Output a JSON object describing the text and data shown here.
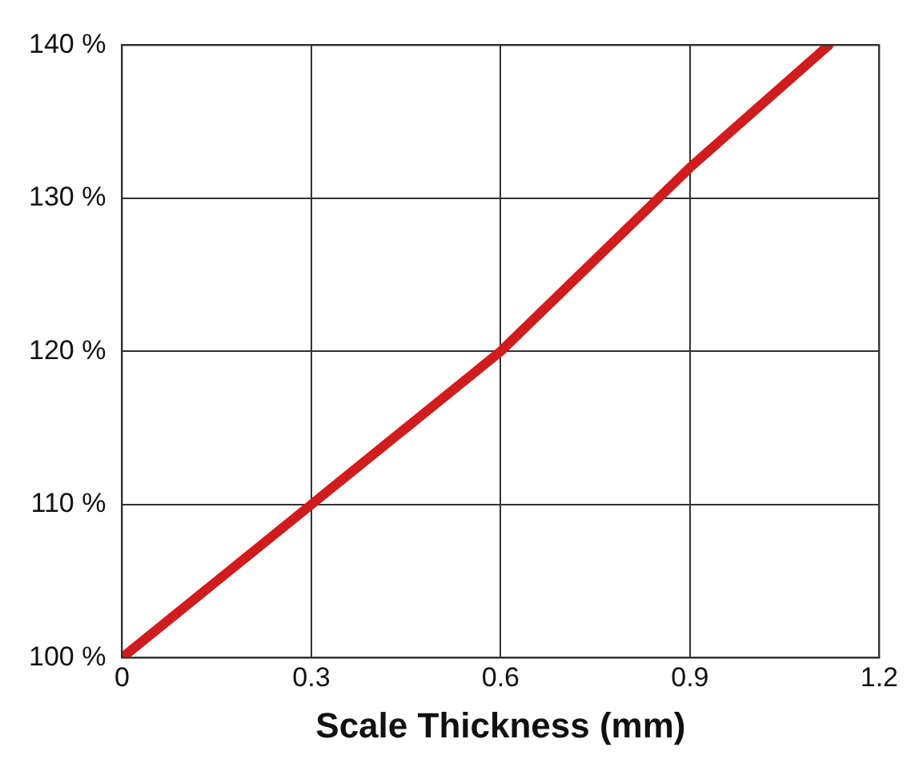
{
  "chart_data": {
    "type": "line",
    "xlabel": "Scale Thickness (mm)",
    "x": [
      0,
      0.3,
      0.6,
      0.9,
      1.12
    ],
    "series": [
      {
        "color": "#d01c1c",
        "values": [
          100,
          110,
          120,
          132,
          140
        ]
      }
    ],
    "xlim": [
      0,
      1.2
    ],
    "xticks": [
      0,
      0.3,
      0.6,
      0.9,
      1.2
    ],
    "ylim": [
      100,
      140
    ],
    "yticks": [
      {
        "value": 100,
        "label": "100 %"
      },
      {
        "value": 110,
        "label": "110 %"
      },
      {
        "value": 120,
        "label": "120 %"
      },
      {
        "value": 130,
        "label": "130 %"
      },
      {
        "value": 140,
        "label": "140 %"
      }
    ],
    "grid": true,
    "marker": "none",
    "line_style": "solid",
    "legend": false
  }
}
